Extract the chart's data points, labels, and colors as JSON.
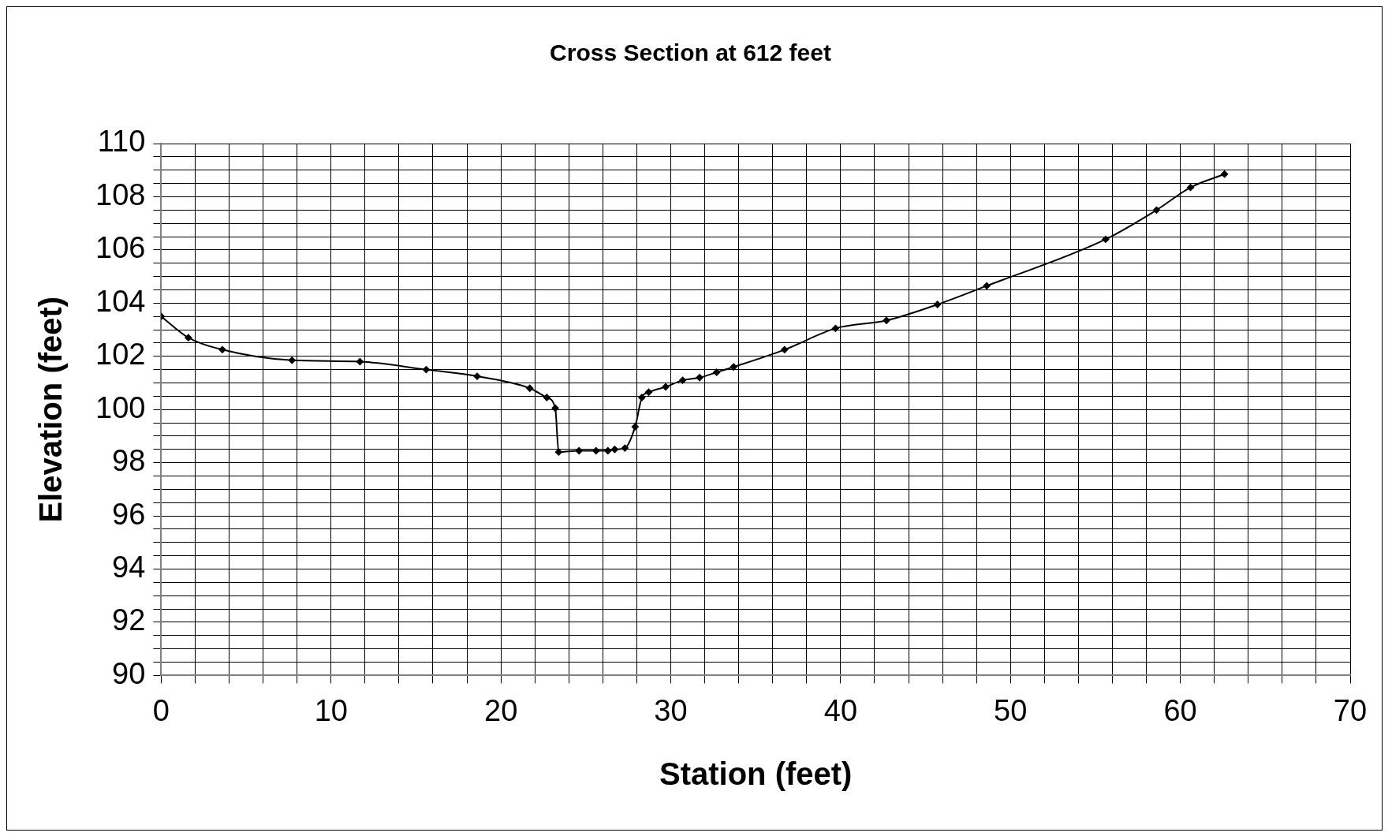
{
  "chart_data": {
    "type": "line",
    "title": "Cross Section at 612 feet",
    "xlabel": "Station (feet)",
    "ylabel": "Elevation (feet)",
    "x": [
      0,
      1.6,
      3.6,
      7.7,
      11.7,
      15.6,
      18.6,
      21.7,
      22.7,
      23.2,
      23.4,
      24.6,
      25.6,
      26.3,
      26.7,
      27.3,
      27.9,
      28.3,
      28.7,
      29.7,
      30.7,
      31.7,
      32.7,
      33.7,
      36.7,
      39.7,
      42.7,
      45.7,
      48.6,
      55.6,
      58.6,
      60.6,
      62.6
    ],
    "series": [
      {
        "color": "#000000",
        "values": [
          103.5,
          102.7,
          102.25,
          101.85,
          101.8,
          101.5,
          101.25,
          100.8,
          100.45,
          100.05,
          98.4,
          98.45,
          98.45,
          98.45,
          98.5,
          98.55,
          99.35,
          100.45,
          100.65,
          100.85,
          101.1,
          101.2,
          101.4,
          101.6,
          102.25,
          103.05,
          103.35,
          103.95,
          104.65,
          106.4,
          107.5,
          108.35,
          108.85
        ]
      }
    ],
    "xlim": [
      0,
      70
    ],
    "xticks": [
      0,
      {
        "value": 2,
        "label": null
      },
      {
        "value": 4,
        "label": null
      },
      {
        "value": 6,
        "label": null
      },
      {
        "value": 8,
        "label": null
      },
      10,
      {
        "value": 12,
        "label": null
      },
      {
        "value": 14,
        "label": null
      },
      {
        "value": 16,
        "label": null
      },
      {
        "value": 18,
        "label": null
      },
      20,
      {
        "value": 22,
        "label": null
      },
      {
        "value": 24,
        "label": null
      },
      {
        "value": 26,
        "label": null
      },
      {
        "value": 28,
        "label": null
      },
      30,
      {
        "value": 32,
        "label": null
      },
      {
        "value": 34,
        "label": null
      },
      {
        "value": 36,
        "label": null
      },
      {
        "value": 38,
        "label": null
      },
      40,
      {
        "value": 42,
        "label": null
      },
      {
        "value": 44,
        "label": null
      },
      {
        "value": 46,
        "label": null
      },
      {
        "value": 48,
        "label": null
      },
      50,
      {
        "value": 52,
        "label": null
      },
      {
        "value": 54,
        "label": null
      },
      {
        "value": 56,
        "label": null
      },
      {
        "value": 58,
        "label": null
      },
      60,
      {
        "value": 62,
        "label": null
      },
      {
        "value": 64,
        "label": null
      },
      {
        "value": 66,
        "label": null
      },
      {
        "value": 68,
        "label": null
      },
      70
    ],
    "ylim": [
      90,
      110
    ],
    "yticks": [
      90,
      {
        "value": 90.5,
        "label": null
      },
      {
        "value": 91,
        "label": null
      },
      {
        "value": 91.5,
        "label": null
      },
      92,
      {
        "value": 92.5,
        "label": null
      },
      {
        "value": 93,
        "label": null
      },
      {
        "value": 93.5,
        "label": null
      },
      94,
      {
        "value": 94.5,
        "label": null
      },
      {
        "value": 95,
        "label": null
      },
      {
        "value": 95.5,
        "label": null
      },
      96,
      {
        "value": 96.5,
        "label": null
      },
      {
        "value": 97,
        "label": null
      },
      {
        "value": 97.5,
        "label": null
      },
      98,
      {
        "value": 98.5,
        "label": null
      },
      {
        "value": 99,
        "label": null
      },
      {
        "value": 99.5,
        "label": null
      },
      100,
      {
        "value": 100.5,
        "label": null
      },
      {
        "value": 101,
        "label": null
      },
      {
        "value": 101.5,
        "label": null
      },
      102,
      {
        "value": 102.5,
        "label": null
      },
      {
        "value": 103,
        "label": null
      },
      {
        "value": 103.5,
        "label": null
      },
      104,
      {
        "value": 104.5,
        "label": null
      },
      {
        "value": 105,
        "label": null
      },
      {
        "value": 105.5,
        "label": null
      },
      106,
      {
        "value": 106.5,
        "label": null
      },
      {
        "value": 107,
        "label": null
      },
      {
        "value": 107.5,
        "label": null
      },
      108,
      {
        "value": 108.5,
        "label": null
      },
      {
        "value": 109,
        "label": null
      },
      {
        "value": 109.5,
        "label": null
      },
      110
    ],
    "grid": true,
    "marker": "diamond",
    "line_style": "solid",
    "legend": false
  }
}
